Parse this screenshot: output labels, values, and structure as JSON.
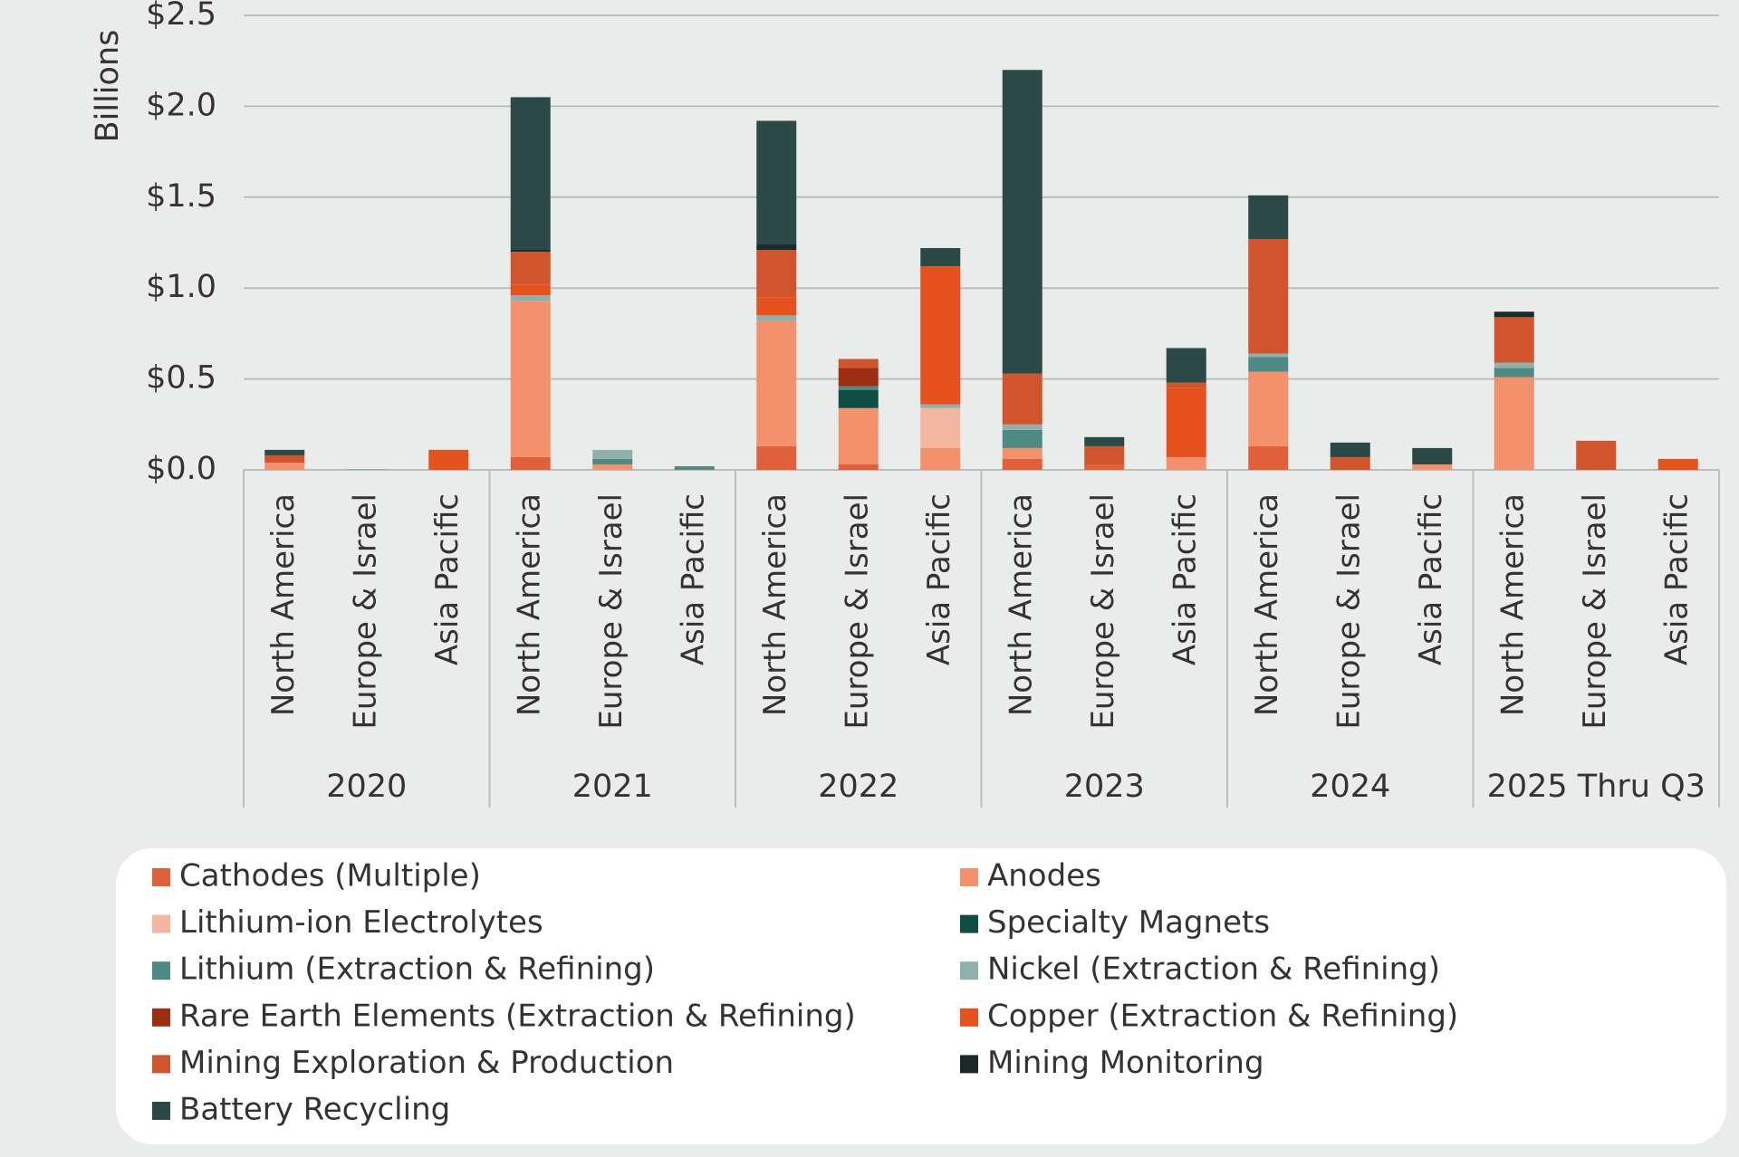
{
  "chart_data": {
    "type": "stacked_bar",
    "y_axis_label": "Billions",
    "categories": [
      "North America",
      "Europe & Israel",
      "Asia Pacific",
      "North America",
      "Europe & Israel",
      "Asia Pacific",
      "North America",
      "Europe & Israel",
      "Asia Pacific",
      "North America",
      "Europe & Israel",
      "Asia Pacific",
      "North America",
      "Europe & Israel",
      "Asia Pacific",
      "North America",
      "Europe & Israel",
      "Asia Pacific"
    ],
    "groups": [
      "2020",
      "2021",
      "2022",
      "2023",
      "2024",
      "2025 Thru Q3"
    ],
    "ylim": [
      0,
      2.5
    ],
    "yticks": [
      {
        "value": 0,
        "label": "$0.0"
      },
      {
        "value": 0.5,
        "label": "$0.5"
      },
      {
        "value": 1,
        "label": "$1.0"
      },
      {
        "value": 1.5,
        "label": "$1.5"
      },
      {
        "value": 2,
        "label": "$2.0"
      },
      {
        "value": 2.5,
        "label": "$2.5"
      }
    ],
    "grid": true,
    "series": [
      {
        "name": "Cathodes (Multiple)",
        "color": "#e0603a",
        "values": [
          0,
          0,
          0,
          0.07,
          0,
          0,
          0.13,
          0.03,
          0,
          0.06,
          0.03,
          0,
          0.13,
          0,
          0,
          0,
          0,
          0
        ]
      },
      {
        "name": "Anodes",
        "color": "#f2916b",
        "values": [
          0.04,
          0,
          0,
          0.86,
          0.03,
          0,
          0.69,
          0.31,
          0.12,
          0.06,
          0,
          0.07,
          0.41,
          0,
          0.03,
          0.51,
          0,
          0
        ]
      },
      {
        "name": "Lithium-ion Electrolytes",
        "color": "#f3b6a0",
        "values": [
          0,
          0,
          0,
          0,
          0,
          0,
          0,
          0,
          0.22,
          0,
          0,
          0,
          0,
          0,
          0,
          0,
          0,
          0
        ]
      },
      {
        "name": "Specialty Magnets",
        "color": "#0f4d45",
        "values": [
          0,
          0,
          0,
          0,
          0,
          0,
          0,
          0.1,
          0,
          0,
          0,
          0,
          0,
          0,
          0,
          0,
          0,
          0
        ]
      },
      {
        "name": "Lithium (Extraction & Refining)",
        "color": "#4e8a84",
        "values": [
          0,
          0,
          0,
          0,
          0.03,
          0.02,
          0,
          0.02,
          0,
          0.1,
          0,
          0,
          0.08,
          0,
          0,
          0.05,
          0,
          0
        ]
      },
      {
        "name": "Nickel (Extraction & Refining)",
        "color": "#90b1ab",
        "values": [
          0,
          0.005,
          0,
          0.03,
          0.05,
          0,
          0.03,
          0,
          0.02,
          0.03,
          0,
          0,
          0.02,
          0,
          0,
          0.03,
          0,
          0
        ]
      },
      {
        "name": "Rare Earth Elements (Extraction & Refining)",
        "color": "#9c2f12",
        "values": [
          0,
          0,
          0,
          0,
          0,
          0,
          0,
          0.1,
          0,
          0,
          0,
          0,
          0,
          0,
          0,
          0,
          0,
          0
        ]
      },
      {
        "name": "Copper (Extraction & Refining)",
        "color": "#e5521e",
        "values": [
          0,
          0,
          0.11,
          0.06,
          0,
          0,
          0.1,
          0,
          0.76,
          0,
          0,
          0.38,
          0,
          0,
          0,
          0,
          0,
          0.06
        ]
      },
      {
        "name": "Mining Exploration & Production",
        "color": "#d0542c",
        "values": [
          0.04,
          0,
          0,
          0.18,
          0,
          0,
          0.26,
          0.05,
          0,
          0.28,
          0.1,
          0.03,
          0.63,
          0.07,
          0,
          0.25,
          0.16,
          0
        ]
      },
      {
        "name": "Mining Monitoring",
        "color": "#1a2a28",
        "values": [
          0,
          0,
          0,
          0.01,
          0,
          0,
          0.03,
          0,
          0,
          0,
          0,
          0,
          0,
          0,
          0,
          0.03,
          0,
          0
        ]
      },
      {
        "name": "Battery Recycling",
        "color": "#2b4a47",
        "values": [
          0.03,
          0,
          0,
          0.84,
          0,
          0,
          0.68,
          0,
          0.1,
          1.67,
          0.05,
          0.19,
          0.24,
          0.08,
          0.09,
          0,
          0,
          0
        ]
      }
    ]
  }
}
